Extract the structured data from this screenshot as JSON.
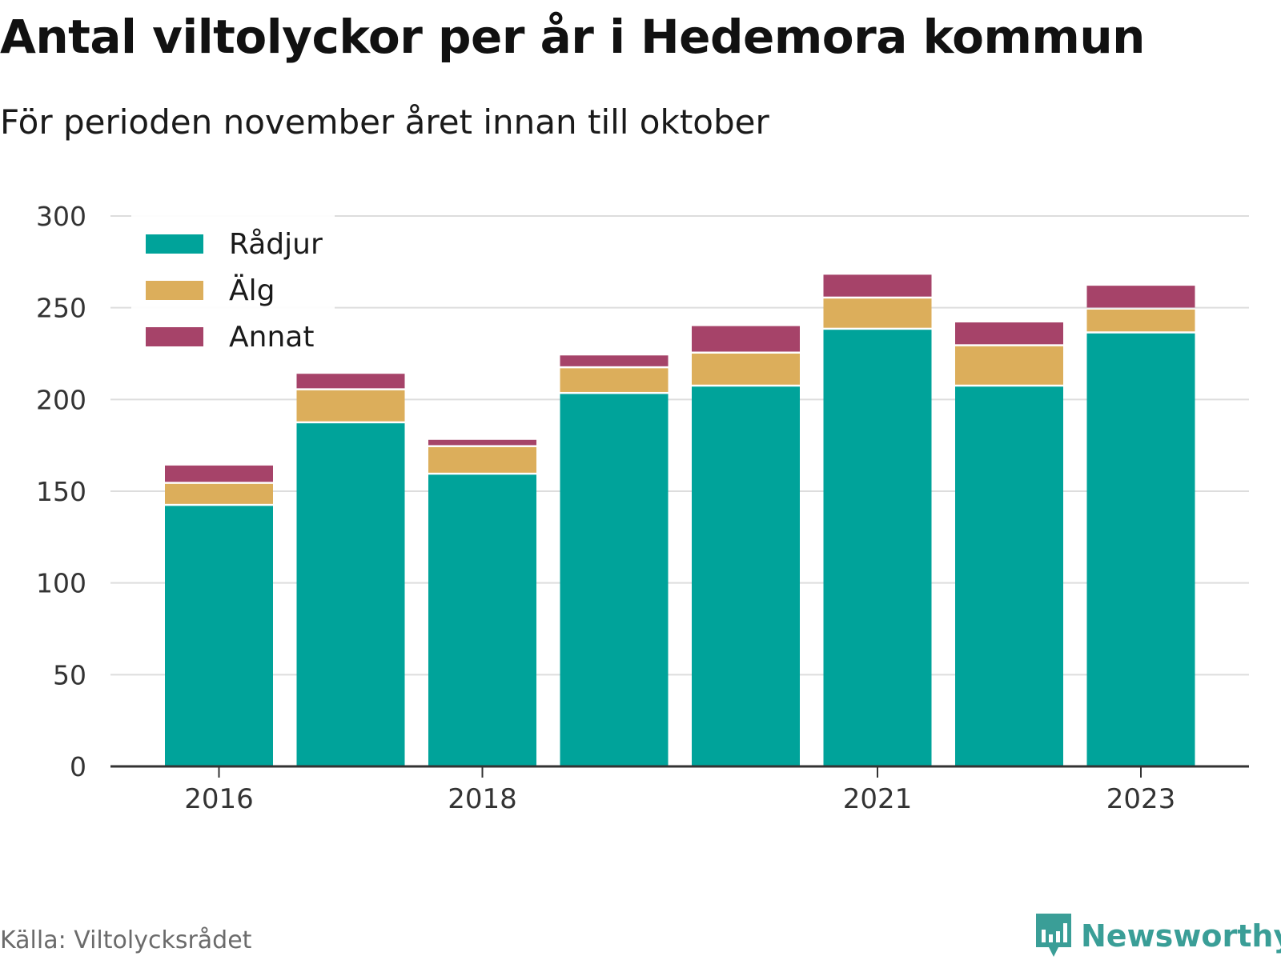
{
  "title": "Antal viltolyckor per år i Hedemora kommun",
  "subtitle": "För perioden november året innan till oktober",
  "source": "Källa: Viltolycksrådet",
  "brand": "Newsworthy",
  "colors": {
    "radjur": "#00a39a",
    "alg": "#dcae5b",
    "annat": "#a64369",
    "grid": "#dddddd",
    "axis": "#333333",
    "brand": "#3a9e97"
  },
  "chart_data": {
    "type": "bar",
    "stacked": true,
    "categories": [
      "2016",
      "2017",
      "2018",
      "2019",
      "2020",
      "2021",
      "2022",
      "2023"
    ],
    "x_tick_labels": [
      "2016",
      "2018",
      "2021",
      "2023"
    ],
    "series": [
      {
        "name": "Rådjur",
        "color": "#00a39a",
        "values": [
          142,
          187,
          159,
          203,
          207,
          238,
          207,
          236
        ]
      },
      {
        "name": "Älg",
        "color": "#dcae5b",
        "values": [
          12,
          18,
          15,
          14,
          18,
          17,
          22,
          13
        ]
      },
      {
        "name": "Annat",
        "color": "#a64369",
        "values": [
          10,
          9,
          4,
          7,
          15,
          13,
          13,
          13
        ]
      }
    ],
    "ylim": [
      0,
      300
    ],
    "yticks": [
      0,
      50,
      100,
      150,
      200,
      250,
      300
    ],
    "grid": true,
    "legend": "top-left"
  }
}
